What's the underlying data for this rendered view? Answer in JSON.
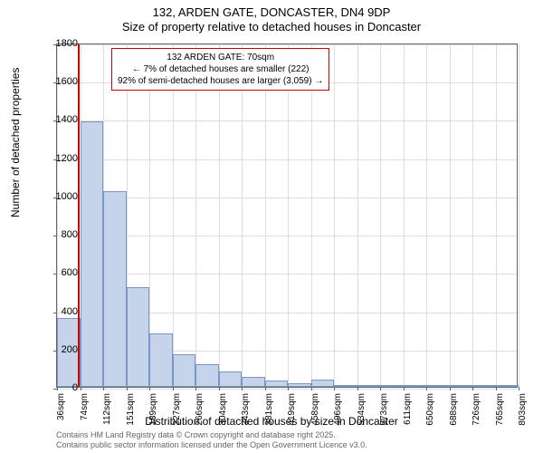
{
  "title": "132, ARDEN GATE, DONCASTER, DN4 9DP",
  "subtitle": "Size of property relative to detached houses in Doncaster",
  "chart": {
    "type": "histogram",
    "ylabel": "Number of detached properties",
    "xlabel": "Distribution of detached houses by size in Doncaster",
    "ylim": [
      0,
      1800
    ],
    "ytick_step": 200,
    "yticks": [
      0,
      200,
      400,
      600,
      800,
      1000,
      1200,
      1400,
      1600,
      1800
    ],
    "xticks": [
      "36sqm",
      "74sqm",
      "112sqm",
      "151sqm",
      "189sqm",
      "227sqm",
      "266sqm",
      "304sqm",
      "343sqm",
      "381sqm",
      "419sqm",
      "458sqm",
      "496sqm",
      "534sqm",
      "573sqm",
      "611sqm",
      "650sqm",
      "688sqm",
      "726sqm",
      "765sqm",
      "803sqm"
    ],
    "bars": [
      360,
      1390,
      1025,
      520,
      280,
      170,
      120,
      80,
      50,
      35,
      20,
      40,
      10,
      5,
      5,
      3,
      3,
      3,
      2,
      2
    ],
    "bar_color": "#c5d4ea",
    "bar_border": "#7a96c4",
    "grid_color": "#dddddd",
    "background_color": "#ffffff",
    "marker_color": "#cc0000",
    "marker_position_sqm": 70,
    "annotation": {
      "line1": "132 ARDEN GATE: 70sqm",
      "line2": "← 7% of detached houses are smaller (222)",
      "line3": "92% of semi-detached houses are larger (3,059) →"
    }
  },
  "footnote": {
    "line1": "Contains HM Land Registry data © Crown copyright and database right 2025.",
    "line2": "Contains public sector information licensed under the Open Government Licence v3.0."
  }
}
